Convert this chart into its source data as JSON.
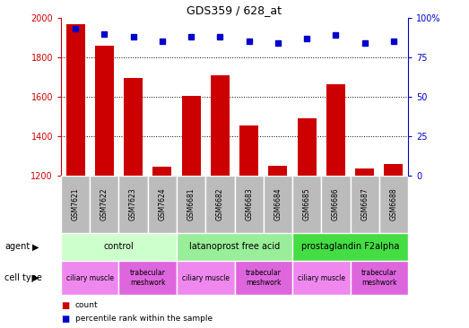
{
  "title": "GDS359 / 628_at",
  "samples": [
    "GSM7621",
    "GSM7622",
    "GSM7623",
    "GSM7624",
    "GSM6681",
    "GSM6682",
    "GSM6683",
    "GSM6684",
    "GSM6685",
    "GSM6686",
    "GSM6687",
    "GSM6688"
  ],
  "counts": [
    1970,
    1860,
    1695,
    1245,
    1605,
    1710,
    1455,
    1250,
    1490,
    1665,
    1235,
    1260
  ],
  "percentiles": [
    93,
    90,
    88,
    85,
    88,
    88,
    85,
    84,
    87,
    89,
    84,
    85
  ],
  "ylim_left": [
    1200,
    2000
  ],
  "ylim_right": [
    0,
    100
  ],
  "yticks_left": [
    1200,
    1400,
    1600,
    1800,
    2000
  ],
  "yticks_right": [
    0,
    25,
    50,
    75,
    100
  ],
  "bar_color": "#cc0000",
  "dot_color": "#0000cc",
  "agent_groups": [
    {
      "label": "control",
      "start": 0,
      "end": 4,
      "color": "#ccffcc"
    },
    {
      "label": "latanoprost free acid",
      "start": 4,
      "end": 8,
      "color": "#99ee99"
    },
    {
      "label": "prostaglandin F2alpha",
      "start": 8,
      "end": 12,
      "color": "#44dd44"
    }
  ],
  "cell_type_groups": [
    {
      "label": "ciliary muscle",
      "start": 0,
      "end": 2,
      "color": "#ee88ee"
    },
    {
      "label": "trabecular\nmeshwork",
      "start": 2,
      "end": 4,
      "color": "#dd66dd"
    },
    {
      "label": "ciliary muscle",
      "start": 4,
      "end": 6,
      "color": "#ee88ee"
    },
    {
      "label": "trabecular\nmeshwork",
      "start": 6,
      "end": 8,
      "color": "#dd66dd"
    },
    {
      "label": "ciliary muscle",
      "start": 8,
      "end": 10,
      "color": "#ee88ee"
    },
    {
      "label": "trabecular\nmeshwork",
      "start": 10,
      "end": 12,
      "color": "#dd66dd"
    }
  ],
  "left_color": "#cc0000",
  "right_color": "#0000cc",
  "sample_bg_color": "#bbbbbb",
  "legend_count_color": "#cc0000",
  "legend_pct_color": "#0000cc"
}
